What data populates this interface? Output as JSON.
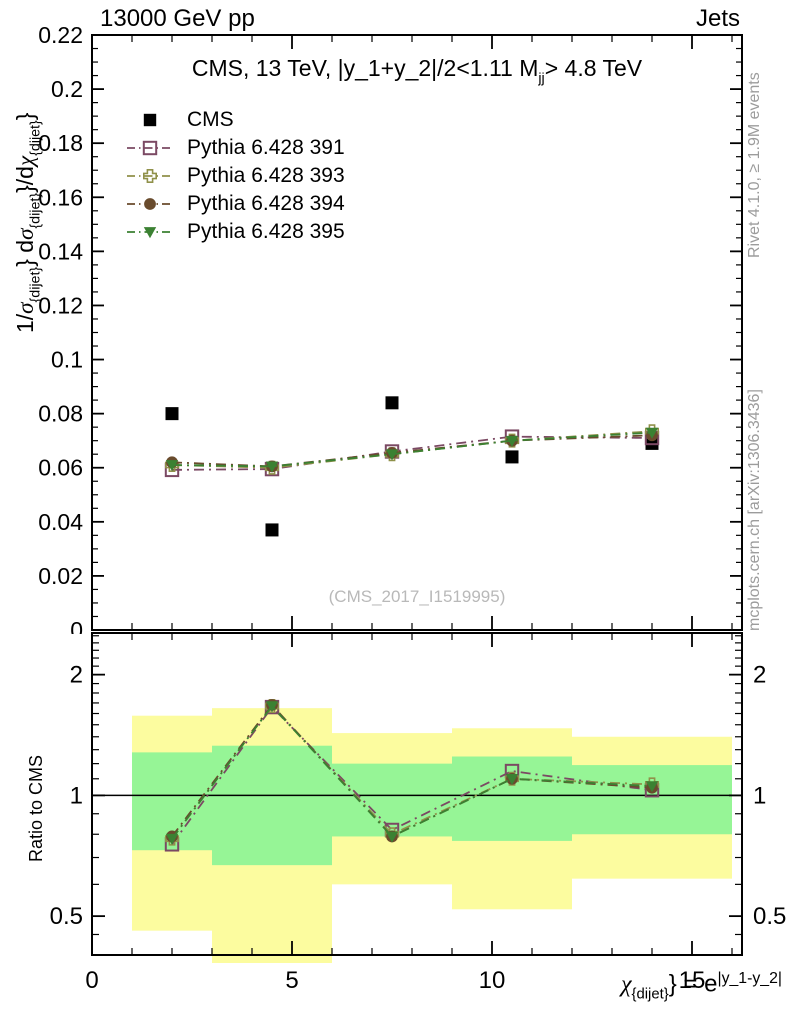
{
  "header": {
    "left": "13000 GeV pp",
    "right": "Jets"
  },
  "plot_title": {
    "p1": "CMS, 13 TeV, |y_1+y_2|/2<1.11 M",
    "sub": "jj",
    "p2": "> 4.8 TeV"
  },
  "watermark": "(CMS_2017_I1519995)",
  "side_notes": {
    "top": "Rivet 4.1.0, ≥ 1.9M events",
    "bottom": "mcplots.cern.ch [arXiv:1306.3436]"
  },
  "axis_labels": {
    "y_label": {
      "p1": "1/",
      "s1": "σ",
      "b1": "{dijet}",
      "p2": "} d",
      "s2": "σ",
      "b2": "{dijet}",
      "p3": "}/d",
      "s3": "χ",
      "b3": "{dijet}",
      "p4": "}"
    },
    "x_label": {
      "s1": "χ",
      "b1": "{dijet}",
      "p1": "} = e",
      "sup": "|y_1-y_2|"
    },
    "ratio_label": "Ratio to CMS"
  },
  "chart_data": {
    "type": "line",
    "title": "CMS, 13 TeV, |y_1+y_2|/2<1.11 M_jj> 4.8 TeV",
    "xlabel": "χ_{dijet}} = e^|y_1-y_2|",
    "ylabel": "1/σ_{dijet}} dσ_{dijet}}/dχ_{dijet}}",
    "ratio_ylabel": "Ratio to CMS",
    "x_range": [
      0,
      16.25
    ],
    "y_range": [
      0,
      0.22
    ],
    "ratio_range": [
      0.4,
      2.54
    ],
    "ratio_scale": "log",
    "grid": false,
    "legend_position": "top-left-inside",
    "x_ticks": {
      "major": [
        {
          "v": 0,
          "label": "0"
        },
        {
          "v": 5,
          "label": "5"
        },
        {
          "v": 10,
          "label": "10"
        },
        {
          "v": 15,
          "label": "15"
        }
      ],
      "minor_step": 1
    },
    "y_ticks": {
      "major": [
        {
          "v": 0,
          "label": "0"
        },
        {
          "v": 0.02,
          "label": "0.02"
        },
        {
          "v": 0.04,
          "label": "0.04"
        },
        {
          "v": 0.06,
          "label": "0.06"
        },
        {
          "v": 0.08,
          "label": "0.08"
        },
        {
          "v": 0.1,
          "label": "0.1"
        },
        {
          "v": 0.12,
          "label": "0.12"
        },
        {
          "v": 0.14,
          "label": "0.14"
        },
        {
          "v": 0.16,
          "label": "0.16"
        },
        {
          "v": 0.18,
          "label": "0.18"
        },
        {
          "v": 0.2,
          "label": "0.2"
        },
        {
          "v": 0.22,
          "label": "0.22"
        }
      ],
      "minor_step": 0.005
    },
    "ratio_ticks": {
      "major": [
        {
          "v": 0.5,
          "label": "0.5"
        },
        {
          "v": 1,
          "label": "1"
        },
        {
          "v": 2,
          "label": "2"
        }
      ],
      "minor": [
        0.4,
        0.45,
        0.6,
        0.7,
        0.8,
        0.9,
        1.1,
        1.2,
        1.3,
        1.4,
        1.5,
        1.6,
        1.7,
        1.8,
        1.9,
        2.1,
        2.2,
        2.3,
        2.4,
        2.5
      ]
    },
    "bin_centers": [
      2,
      4.5,
      7.5,
      10.5,
      14
    ],
    "bin_edges": [
      1,
      3,
      6,
      9,
      12,
      16
    ],
    "data_series": {
      "name": "CMS",
      "marker": "square-filled",
      "color": "#000000",
      "values": [
        0.08,
        0.037,
        0.084,
        0.064,
        0.069
      ]
    },
    "mc_series": [
      {
        "name": "Pythia 6.428 391",
        "marker": "square-open",
        "color": "#7b4963",
        "values": [
          0.0592,
          0.0595,
          0.066,
          0.0715,
          0.071
        ],
        "ratio": [
          0.755,
          1.66,
          0.82,
          1.15,
          1.03
        ]
      },
      {
        "name": "Pythia 6.428 393",
        "marker": "cross-open",
        "color": "#90914a",
        "values": [
          0.061,
          0.06,
          0.065,
          0.07,
          0.0735
        ],
        "ratio": [
          0.78,
          1.67,
          0.8,
          1.1,
          1.065
        ]
      },
      {
        "name": "Pythia 6.428 394",
        "marker": "circle-filled",
        "color": "#694b2d",
        "values": [
          0.062,
          0.0605,
          0.0655,
          0.07,
          0.072
        ],
        "ratio": [
          0.79,
          1.68,
          0.79,
          1.1,
          1.045
        ]
      },
      {
        "name": "Pythia 6.428 395",
        "marker": "triangle-down-filled",
        "color": "#3b8132",
        "values": [
          0.061,
          0.0605,
          0.065,
          0.07,
          0.073
        ],
        "ratio": [
          0.78,
          1.67,
          0.79,
          1.1,
          1.055
        ]
      }
    ],
    "reference_line": 1,
    "uncertainty_bands": {
      "yellow_color": "#fcfc9f",
      "green_color": "#96f596",
      "yellow": [
        [
          0.46,
          1.58
        ],
        [
          0.38,
          1.65
        ],
        [
          0.6,
          1.43
        ],
        [
          0.52,
          1.47
        ],
        [
          0.62,
          1.4
        ]
      ],
      "green": [
        [
          0.73,
          1.28
        ],
        [
          0.67,
          1.33
        ],
        [
          0.79,
          1.2
        ],
        [
          0.77,
          1.25
        ],
        [
          0.8,
          1.19
        ]
      ]
    }
  }
}
